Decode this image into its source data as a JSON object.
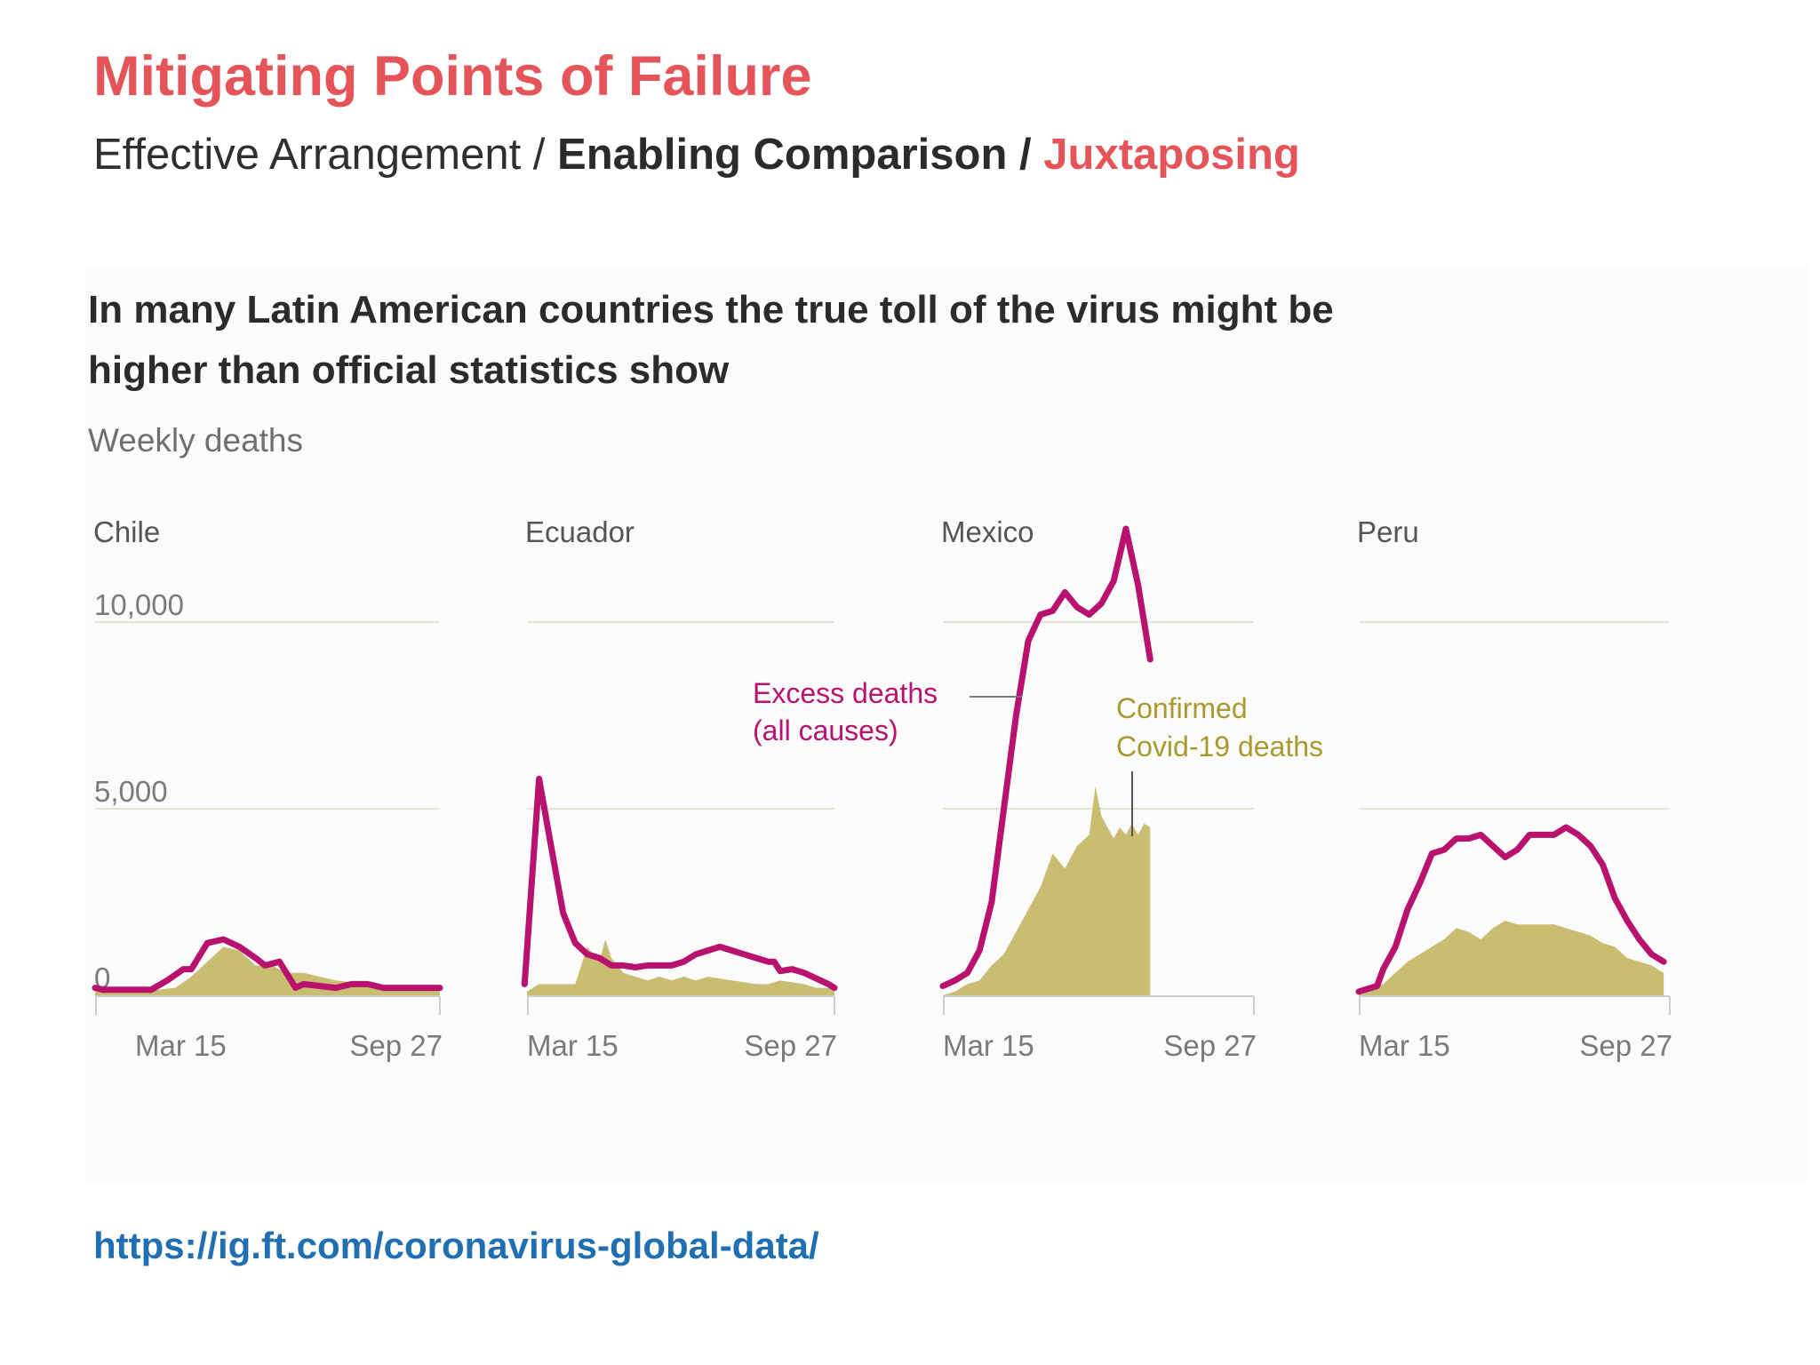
{
  "header": {
    "title": "Mitigating Points of Failure",
    "breadcrumb": {
      "part1": "Effective Arrangement / ",
      "part2": "Enabling Comparison / ",
      "part3": "Juxtaposing"
    }
  },
  "colors": {
    "title": "#e55458",
    "excess": "#b8126e",
    "confirmed": "#c9bd72",
    "annotation_confirmed": "#a89a2e",
    "link": "#1f6fb2"
  },
  "chart_data": {
    "type": "line",
    "title": "In many Latin American countries the true toll of the virus might be higher than official statistics show",
    "subtitle": "Weekly deaths",
    "y_ticks": [
      {
        "value": 0,
        "label": "0"
      },
      {
        "value": 5000,
        "label": "5,000"
      },
      {
        "value": 10000,
        "label": "10,000"
      }
    ],
    "ylim": [
      0,
      10000
    ],
    "x_tick_labels": [
      "Mar 15",
      "Sep 27"
    ],
    "series_names": {
      "excess": "Excess deaths",
      "confirmed": "Confirmed Covid-19 deaths"
    },
    "annotations": {
      "excess": [
        "Excess deaths",
        "(all causes)"
      ],
      "confirmed": [
        "Confirmed",
        "Covid-19 deaths"
      ]
    },
    "panels": [
      {
        "name": "Chile",
        "excess": [
          [
            0,
            200
          ],
          [
            0.5,
            150
          ],
          [
            1.5,
            150
          ],
          [
            2.5,
            150
          ],
          [
            3.5,
            150
          ],
          [
            4.5,
            400
          ],
          [
            5.5,
            700
          ],
          [
            6,
            700
          ],
          [
            7,
            1400
          ],
          [
            8,
            1500
          ],
          [
            9,
            1300
          ],
          [
            10,
            1000
          ],
          [
            10.6,
            800
          ],
          [
            11.5,
            900
          ],
          [
            12.5,
            200
          ],
          [
            13,
            300
          ],
          [
            14,
            250
          ],
          [
            15,
            200
          ],
          [
            16,
            300
          ],
          [
            17,
            300
          ],
          [
            17.5,
            250
          ],
          [
            18,
            200
          ],
          [
            19,
            200
          ],
          [
            20,
            200
          ],
          [
            21,
            200
          ],
          [
            21.5,
            200
          ]
        ],
        "confirmed": [
          [
            0,
            100
          ],
          [
            3,
            100
          ],
          [
            5,
            200
          ],
          [
            6,
            500
          ],
          [
            7,
            900
          ],
          [
            8,
            1300
          ],
          [
            9,
            1200
          ],
          [
            10,
            800
          ],
          [
            11,
            800
          ],
          [
            12,
            600
          ],
          [
            13,
            600
          ],
          [
            14,
            500
          ],
          [
            15,
            400
          ],
          [
            16,
            350
          ],
          [
            17,
            300
          ],
          [
            18,
            250
          ],
          [
            19,
            200
          ],
          [
            21.5,
            200
          ]
        ]
      },
      {
        "name": "Ecuador",
        "excess": [
          [
            -0.2,
            300
          ],
          [
            1,
            5800
          ],
          [
            2,
            4000
          ],
          [
            3,
            2200
          ],
          [
            4,
            1400
          ],
          [
            5,
            1100
          ],
          [
            6,
            1000
          ],
          [
            7,
            800
          ],
          [
            8,
            800
          ],
          [
            9,
            750
          ],
          [
            10,
            800
          ],
          [
            11,
            800
          ],
          [
            12,
            800
          ],
          [
            13,
            900
          ],
          [
            14,
            1100
          ],
          [
            15,
            1200
          ],
          [
            16,
            1300
          ],
          [
            17,
            1200
          ],
          [
            18,
            1100
          ],
          [
            19,
            1000
          ],
          [
            20,
            900
          ],
          [
            20.5,
            900
          ],
          [
            21,
            650
          ],
          [
            22,
            700
          ],
          [
            23,
            600
          ],
          [
            24,
            450
          ],
          [
            25,
            300
          ],
          [
            25.5,
            200
          ]
        ],
        "confirmed": [
          [
            0,
            100
          ],
          [
            1,
            300
          ],
          [
            4,
            300
          ],
          [
            5,
            1300
          ],
          [
            6,
            900
          ],
          [
            6.5,
            1500
          ],
          [
            7,
            1000
          ],
          [
            8,
            600
          ],
          [
            9,
            500
          ],
          [
            10,
            400
          ],
          [
            11,
            500
          ],
          [
            12,
            400
          ],
          [
            13,
            500
          ],
          [
            14,
            400
          ],
          [
            15,
            500
          ],
          [
            16,
            450
          ],
          [
            17,
            400
          ],
          [
            18,
            350
          ],
          [
            19,
            300
          ],
          [
            20,
            300
          ],
          [
            21,
            400
          ],
          [
            22,
            350
          ],
          [
            23,
            300
          ],
          [
            24,
            200
          ],
          [
            25,
            200
          ],
          [
            25.5,
            200
          ]
        ]
      },
      {
        "name": "Mexico",
        "excess": [
          [
            0,
            250
          ],
          [
            1,
            400
          ],
          [
            2,
            600
          ],
          [
            3,
            1200
          ],
          [
            4,
            2500
          ],
          [
            5,
            5000
          ],
          [
            6,
            7500
          ],
          [
            7,
            9500
          ],
          [
            8,
            10200
          ],
          [
            9,
            10300
          ],
          [
            10,
            10800
          ],
          [
            11,
            10400
          ],
          [
            12,
            10200
          ],
          [
            13,
            10500
          ],
          [
            14,
            11100
          ],
          [
            15,
            12500
          ],
          [
            16,
            11000
          ],
          [
            17,
            9000
          ]
        ],
        "confirmed": [
          [
            0,
            0
          ],
          [
            1,
            100
          ],
          [
            2,
            300
          ],
          [
            3,
            400
          ],
          [
            4,
            800
          ],
          [
            5,
            1100
          ],
          [
            6,
            1700
          ],
          [
            7,
            2300
          ],
          [
            8,
            2900
          ],
          [
            9,
            3800
          ],
          [
            10,
            3400
          ],
          [
            11,
            4000
          ],
          [
            12,
            4300
          ],
          [
            12.5,
            5600
          ],
          [
            13,
            4800
          ],
          [
            14,
            4200
          ],
          [
            14.5,
            4500
          ],
          [
            15,
            4300
          ],
          [
            15.5,
            4600
          ],
          [
            16,
            4300
          ],
          [
            16.5,
            4600
          ],
          [
            17,
            4500
          ]
        ]
      },
      {
        "name": "Peru",
        "excess": [
          [
            0,
            100
          ],
          [
            1,
            200
          ],
          [
            1.5,
            250
          ],
          [
            2,
            700
          ],
          [
            3,
            1300
          ],
          [
            4,
            2300
          ],
          [
            5,
            3000
          ],
          [
            6,
            3800
          ],
          [
            7,
            3900
          ],
          [
            8,
            4200
          ],
          [
            9,
            4200
          ],
          [
            10,
            4300
          ],
          [
            11,
            4000
          ],
          [
            12,
            3700
          ],
          [
            13,
            3900
          ],
          [
            14,
            4300
          ],
          [
            15,
            4300
          ],
          [
            16,
            4300
          ],
          [
            17,
            4500
          ],
          [
            18,
            4300
          ],
          [
            19,
            4000
          ],
          [
            20,
            3500
          ],
          [
            21,
            2600
          ],
          [
            22,
            2000
          ],
          [
            23,
            1500
          ],
          [
            24,
            1100
          ],
          [
            25,
            900
          ]
        ],
        "confirmed": [
          [
            0,
            100
          ],
          [
            1,
            200
          ],
          [
            2,
            300
          ],
          [
            3,
            600
          ],
          [
            4,
            900
          ],
          [
            5,
            1100
          ],
          [
            6,
            1300
          ],
          [
            7,
            1500
          ],
          [
            8,
            1800
          ],
          [
            9,
            1700
          ],
          [
            10,
            1500
          ],
          [
            11,
            1800
          ],
          [
            12,
            2000
          ],
          [
            13,
            1900
          ],
          [
            14,
            1900
          ],
          [
            15,
            1900
          ],
          [
            16,
            1900
          ],
          [
            17,
            1800
          ],
          [
            18,
            1700
          ],
          [
            19,
            1600
          ],
          [
            20,
            1400
          ],
          [
            21,
            1300
          ],
          [
            22,
            1000
          ],
          [
            23,
            900
          ],
          [
            24,
            800
          ],
          [
            25,
            600
          ]
        ]
      }
    ]
  },
  "source": {
    "url_text": "https://ig.ft.com/coronavirus-global-data/"
  }
}
